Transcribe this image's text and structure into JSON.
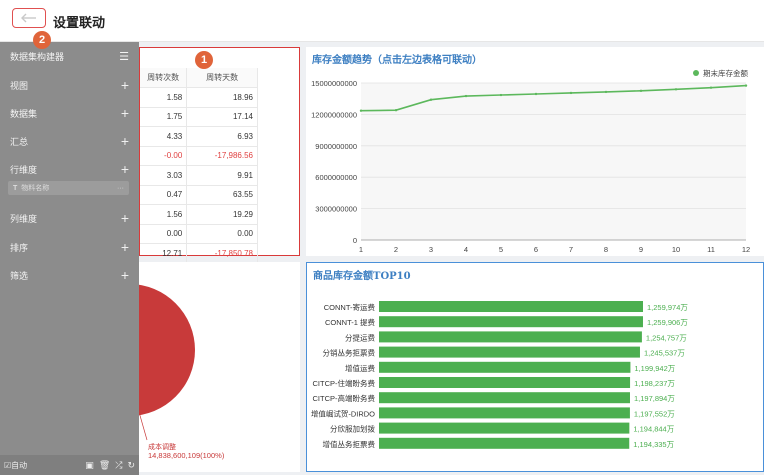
{
  "header": {
    "title": "设置联动",
    "back_icon": "arrow-left-icon"
  },
  "badges": {
    "one": "1",
    "two": "2"
  },
  "sidebar": {
    "builder_label": "数据集构建器",
    "items": [
      {
        "label": "视图"
      },
      {
        "label": "数据集"
      },
      {
        "label": "汇总"
      },
      {
        "label": "行维度"
      },
      {
        "label": "列维度"
      },
      {
        "label": "排序"
      },
      {
        "label": "筛选"
      }
    ],
    "field_chip": {
      "type": "T",
      "label": "物料名称",
      "more": "···"
    },
    "footer": {
      "auto_label": "自动"
    }
  },
  "table": {
    "headers": [
      "周转次数",
      "周转天数"
    ],
    "rows": [
      [
        "1.58",
        "18.96"
      ],
      [
        "1.75",
        "17.14"
      ],
      [
        "4.33",
        "6.93"
      ],
      [
        "-0.00",
        "-17,986.56"
      ],
      [
        "3.03",
        "9.91"
      ],
      [
        "0.47",
        "63.55"
      ],
      [
        "1.56",
        "19.29"
      ],
      [
        "0.00",
        "0.00"
      ],
      [
        "12.71",
        "-17,850.78"
      ]
    ]
  },
  "pie": {
    "label": "成本调整",
    "value": "14,838,600,109(100%)",
    "color": "#c83a3a"
  },
  "chart_data": [
    {
      "type": "line",
      "title": "库存金额趋势（点击左边表格可联动）",
      "legend": "期末库存金额",
      "legend_position": "top-right",
      "x": [
        1,
        2,
        3,
        4,
        5,
        6,
        7,
        8,
        9,
        10,
        11,
        12
      ],
      "y_ticks": [
        "15000000000",
        "12000000000",
        "9000000000",
        "6000000000",
        "3000000000",
        "0"
      ],
      "ylim": [
        0,
        15000000000
      ],
      "series": [
        {
          "name": "期末库存金额",
          "color": "#5cb85c",
          "values": [
            12350000000,
            12400000000,
            13400000000,
            13750000000,
            13850000000,
            13950000000,
            14050000000,
            14150000000,
            14250000000,
            14400000000,
            14550000000,
            14750000000
          ]
        }
      ],
      "grid": true
    },
    {
      "type": "bar",
      "orientation": "horizontal",
      "title": "商品库存金额TOP10",
      "color": "#4caf50",
      "categories": [
        "CONNT-寄运费",
        "CONNT-1 提费",
        "分提运费",
        "分销丛务拒票费",
        "增值运费",
        "CITCP-住端盼务费",
        "CITCP-高端盼务费",
        "增值崛试贺-DIRDO",
        "分欣服加划拨",
        "增值丛务拒票费"
      ],
      "values": [
        1259974,
        1259906,
        1254757,
        1245537,
        1199942,
        1198237,
        1197894,
        1197552,
        1194844,
        1194335
      ],
      "labels": [
        "1,259,974万",
        "1,259,906万",
        "1,254,757万",
        "1,245,537万",
        "1,199,942万",
        "1,198,237万",
        "1,197,894万",
        "1,197,552万",
        "1,194,844万",
        "1,194,335万"
      ]
    }
  ]
}
